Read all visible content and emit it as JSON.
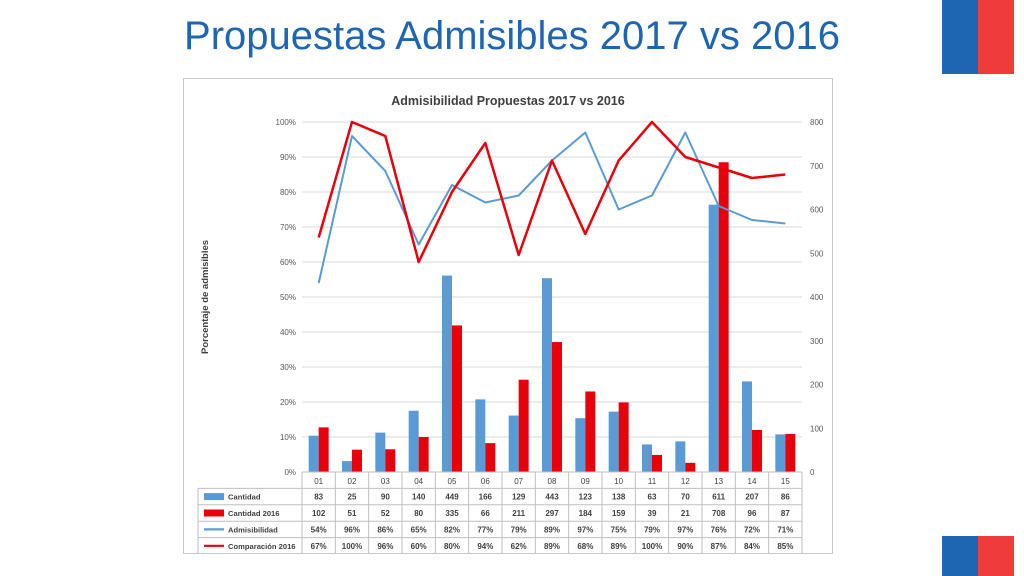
{
  "slide": {
    "title": "Propuestas Admisibles 2017 vs 2016"
  },
  "colors": {
    "blue": "#5b9bd5",
    "red": "#e8000b",
    "title": "#1f66b2"
  },
  "chart_data": {
    "type": "bar",
    "title": "Admisibilidad Propuestas 2017 vs 2016",
    "ylabel": "Porcentaje de admisibles",
    "categories": [
      "01",
      "02",
      "03",
      "04",
      "05",
      "06",
      "07",
      "08",
      "09",
      "10",
      "11",
      "12",
      "13",
      "14",
      "15"
    ],
    "ylim_left": [
      0,
      100
    ],
    "ylim_right": [
      0,
      800
    ],
    "left_ticks": [
      "0%",
      "10%",
      "20%",
      "30%",
      "40%",
      "50%",
      "60%",
      "70%",
      "80%",
      "90%",
      "100%"
    ],
    "right_ticks": [
      "0",
      "100",
      "200",
      "300",
      "400",
      "500",
      "600",
      "700",
      "800"
    ],
    "series": [
      {
        "name": "Cantidad",
        "kind": "bar",
        "axis": "right",
        "color": "#5b9bd5",
        "values": [
          83,
          25,
          90,
          140,
          449,
          166,
          129,
          443,
          123,
          138,
          63,
          70,
          611,
          207,
          86
        ],
        "labels": [
          "83",
          "25",
          "90",
          "140",
          "449",
          "166",
          "129",
          "443",
          "123",
          "138",
          "63",
          "70",
          "611",
          "207",
          "86"
        ]
      },
      {
        "name": "Cantidad 2016",
        "kind": "bar",
        "axis": "right",
        "color": "#e8000b",
        "values": [
          102,
          51,
          52,
          80,
          335,
          66,
          211,
          297,
          184,
          159,
          39,
          21,
          708,
          96,
          87
        ],
        "labels": [
          "102",
          "51",
          "52",
          "80",
          "335",
          "66",
          "211",
          "297",
          "184",
          "159",
          "39",
          "21",
          "708",
          "96",
          "87"
        ]
      },
      {
        "name": "Admisibilidad",
        "kind": "line",
        "axis": "left",
        "color": "#5b9bd5",
        "values": [
          54,
          96,
          86,
          65,
          82,
          77,
          79,
          89,
          97,
          75,
          79,
          97,
          76,
          72,
          71
        ],
        "labels": [
          "54%",
          "96%",
          "86%",
          "65%",
          "82%",
          "77%",
          "79%",
          "89%",
          "97%",
          "75%",
          "79%",
          "97%",
          "76%",
          "72%",
          "71%"
        ]
      },
      {
        "name": "Comparación 2016",
        "kind": "line",
        "axis": "left",
        "color": "#e8000b",
        "values": [
          67,
          100,
          96,
          60,
          80,
          94,
          62,
          89,
          68,
          89,
          100,
          90,
          87,
          84,
          85
        ],
        "labels": [
          "67%",
          "100%",
          "96%",
          "60%",
          "80%",
          "94%",
          "62%",
          "89%",
          "68%",
          "89%",
          "100%",
          "90%",
          "87%",
          "84%",
          "85%"
        ]
      }
    ],
    "grid": true,
    "legend": "data-table"
  }
}
